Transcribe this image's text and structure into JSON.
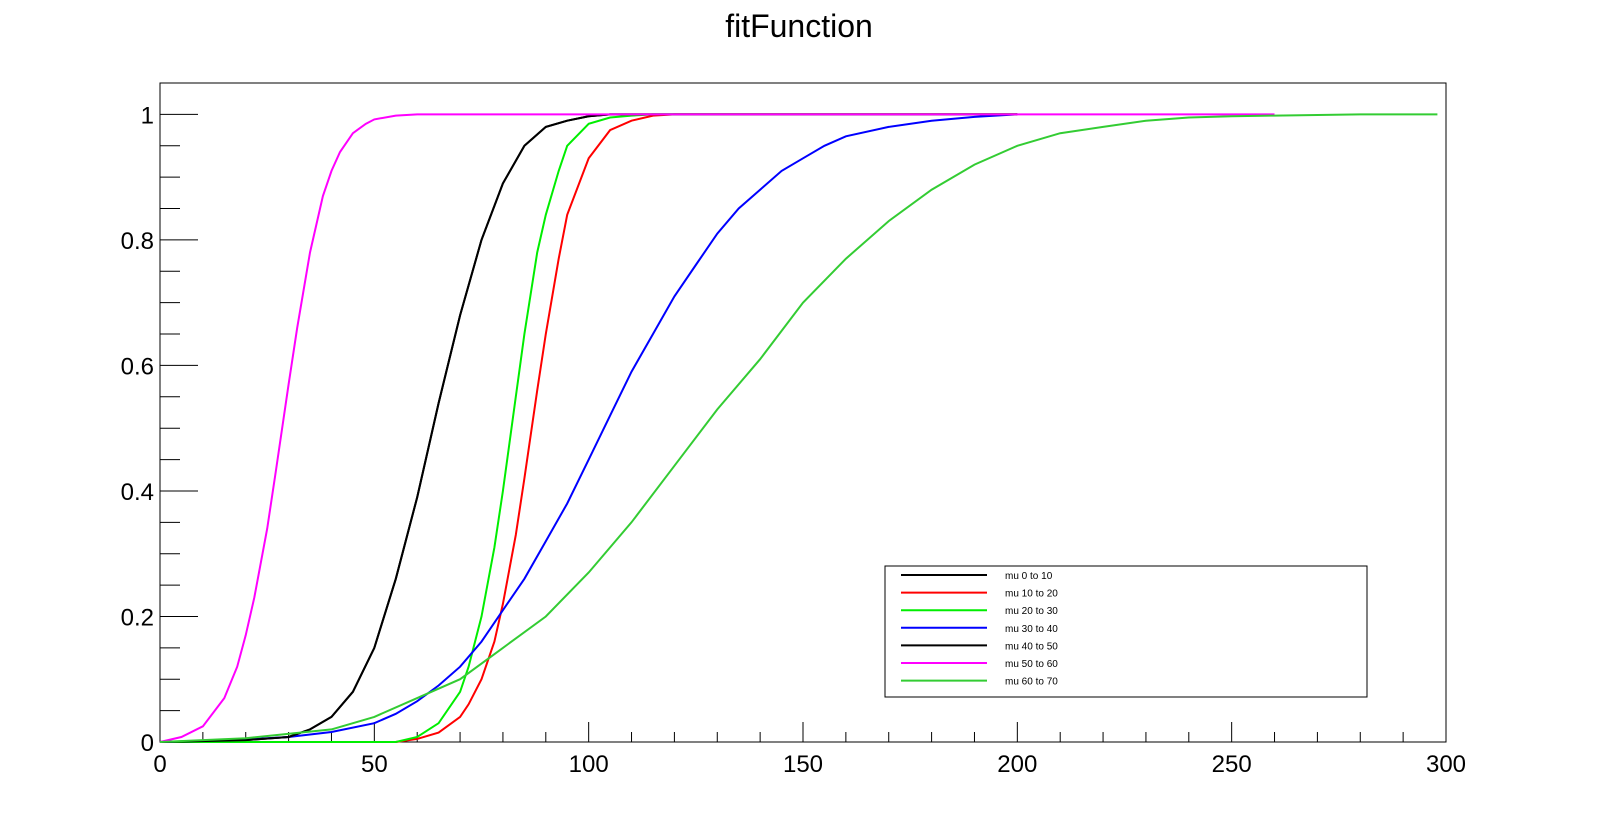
{
  "chart_data": {
    "type": "line",
    "title": "fitFunction",
    "xlabel": "",
    "ylabel": "",
    "xlim": [
      0,
      300
    ],
    "ylim": [
      0,
      1.05
    ],
    "x_ticks": [
      0,
      50,
      100,
      150,
      200,
      250,
      300
    ],
    "x_tick_labels": [
      "0",
      "50",
      "100",
      "150",
      "200",
      "250",
      "300"
    ],
    "y_ticks": [
      0,
      0.2,
      0.4,
      0.6,
      0.8,
      1
    ],
    "y_tick_labels": [
      "0",
      "0.2",
      "0.4",
      "0.6",
      "0.8",
      "1"
    ],
    "grid": false,
    "legend_position": "bottom-right",
    "series": [
      {
        "name": "mu 0 to 10",
        "color": "#000000",
        "x": [
          0,
          20,
          30,
          35,
          40,
          45,
          50,
          55,
          60,
          65,
          70,
          75,
          80,
          85,
          90,
          95,
          100,
          105,
          110,
          120,
          200
        ],
        "y": [
          0,
          0.003,
          0.008,
          0.02,
          0.04,
          0.08,
          0.15,
          0.26,
          0.39,
          0.54,
          0.68,
          0.8,
          0.89,
          0.95,
          0.98,
          0.99,
          0.997,
          1,
          1,
          1,
          1
        ]
      },
      {
        "name": "mu 10 to 20",
        "color": "#ff0000",
        "x": [
          0,
          55,
          60,
          65,
          70,
          72,
          75,
          78,
          80,
          83,
          85,
          88,
          90,
          93,
          95,
          100,
          105,
          110,
          115,
          120,
          200
        ],
        "y": [
          0,
          0,
          0.005,
          0.015,
          0.04,
          0.06,
          0.1,
          0.16,
          0.22,
          0.33,
          0.42,
          0.56,
          0.65,
          0.77,
          0.84,
          0.93,
          0.975,
          0.99,
          0.998,
          1,
          1
        ]
      },
      {
        "name": "mu 20 to 30",
        "color": "#00ee00",
        "x": [
          0,
          55,
          60,
          65,
          70,
          72,
          75,
          78,
          80,
          83,
          85,
          88,
          90,
          93,
          95,
          100,
          105,
          110,
          115,
          120,
          200
        ],
        "y": [
          0,
          0,
          0.008,
          0.03,
          0.08,
          0.12,
          0.2,
          0.31,
          0.4,
          0.55,
          0.65,
          0.78,
          0.84,
          0.91,
          0.95,
          0.985,
          0.995,
          0.998,
          1,
          1,
          1
        ]
      },
      {
        "name": "mu 30 to 40",
        "color": "#0000ff",
        "x": [
          0,
          20,
          30,
          40,
          50,
          55,
          60,
          65,
          70,
          75,
          80,
          85,
          90,
          95,
          100,
          105,
          110,
          115,
          120,
          125,
          130,
          135,
          140,
          145,
          150,
          155,
          160,
          170,
          180,
          190,
          200
        ],
        "y": [
          0,
          0.004,
          0.008,
          0.016,
          0.03,
          0.045,
          0.065,
          0.09,
          0.12,
          0.16,
          0.21,
          0.26,
          0.32,
          0.38,
          0.45,
          0.52,
          0.59,
          0.65,
          0.71,
          0.76,
          0.81,
          0.85,
          0.88,
          0.91,
          0.93,
          0.95,
          0.965,
          0.98,
          0.99,
          0.996,
          1
        ]
      },
      {
        "name": "mu 40 to 50",
        "color": "#000000",
        "x": [
          0,
          20,
          30,
          35,
          40,
          45,
          50,
          55,
          60,
          65,
          70,
          75,
          80,
          85,
          90,
          95,
          100,
          105,
          110,
          120,
          200
        ],
        "y": [
          0,
          0.003,
          0.008,
          0.02,
          0.04,
          0.08,
          0.15,
          0.26,
          0.39,
          0.54,
          0.68,
          0.8,
          0.89,
          0.95,
          0.98,
          0.99,
          0.997,
          1,
          1,
          1,
          1
        ]
      },
      {
        "name": "mu 50 to 60",
        "color": "#ff00ff",
        "x": [
          0,
          5,
          10,
          15,
          18,
          20,
          22,
          25,
          27,
          30,
          32,
          35,
          38,
          40,
          42,
          45,
          48,
          50,
          55,
          60,
          65,
          70,
          80,
          100,
          150,
          200,
          260
        ],
        "y": [
          0,
          0.008,
          0.025,
          0.07,
          0.12,
          0.17,
          0.23,
          0.34,
          0.43,
          0.57,
          0.66,
          0.78,
          0.87,
          0.91,
          0.94,
          0.97,
          0.985,
          0.992,
          0.998,
          1,
          1,
          1,
          1,
          1,
          1,
          1,
          1
        ]
      },
      {
        "name": "mu 60 to 70",
        "color": "#33cc33",
        "x": [
          0,
          20,
          40,
          50,
          60,
          70,
          80,
          90,
          100,
          110,
          120,
          130,
          140,
          150,
          160,
          170,
          180,
          190,
          200,
          210,
          220,
          230,
          240,
          250,
          260,
          270,
          280,
          290,
          298
        ],
        "y": [
          0,
          0.006,
          0.02,
          0.04,
          0.07,
          0.1,
          0.15,
          0.2,
          0.27,
          0.35,
          0.44,
          0.53,
          0.61,
          0.7,
          0.77,
          0.83,
          0.88,
          0.92,
          0.95,
          0.97,
          0.98,
          0.99,
          0.995,
          0.997,
          0.998,
          0.999,
          1,
          1,
          1
        ]
      }
    ]
  }
}
